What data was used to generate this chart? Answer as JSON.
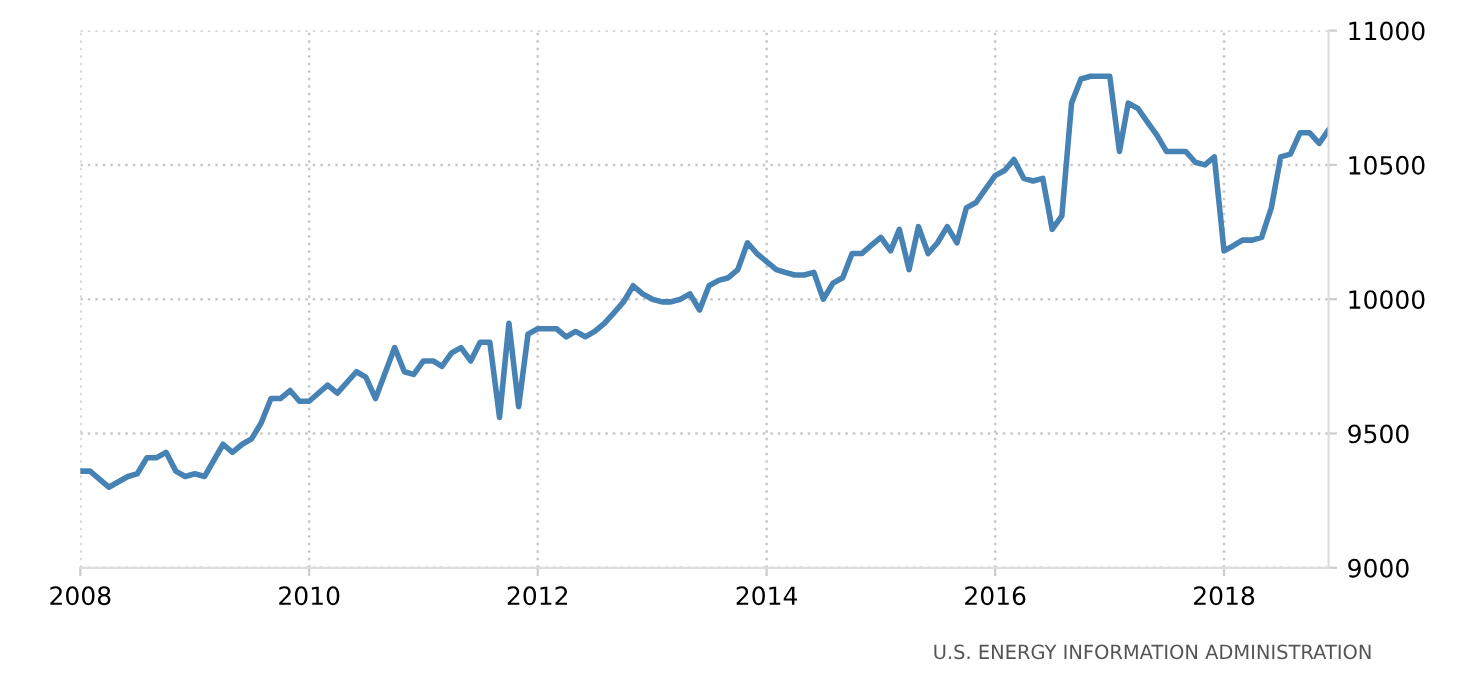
{
  "chart_data": {
    "type": "line",
    "x": [
      "2008-01",
      "2008-02",
      "2008-04",
      "2008-06",
      "2008-07",
      "2008-08",
      "2008-09",
      "2008-10",
      "2008-11",
      "2008-12",
      "2009-01",
      "2009-02",
      "2009-04",
      "2009-05",
      "2009-06",
      "2009-07",
      "2009-08",
      "2009-09",
      "2009-10",
      "2009-11",
      "2009-12",
      "2010-01",
      "2010-03",
      "2010-04",
      "2010-06",
      "2010-07",
      "2010-08",
      "2010-10",
      "2010-11",
      "2010-12",
      "2011-01",
      "2011-02",
      "2011-03",
      "2011-04",
      "2011-05",
      "2011-06",
      "2011-07",
      "2011-08",
      "2011-09",
      "2011-10",
      "2011-11",
      "2011-12",
      "2012-01",
      "2012-02",
      "2012-03",
      "2012-04",
      "2012-05",
      "2012-06",
      "2012-07",
      "2012-08",
      "2012-09",
      "2012-10",
      "2012-11",
      "2012-12",
      "2013-01",
      "2013-02",
      "2013-03",
      "2013-04",
      "2013-05",
      "2013-06",
      "2013-07",
      "2013-08",
      "2013-09",
      "2013-10",
      "2013-11",
      "2013-12",
      "2014-01",
      "2014-02",
      "2014-03",
      "2014-04",
      "2014-05",
      "2014-06",
      "2014-07",
      "2014-08",
      "2014-09",
      "2014-10",
      "2014-11",
      "2014-12",
      "2015-01",
      "2015-02",
      "2015-03",
      "2015-04",
      "2015-05",
      "2015-06",
      "2015-07",
      "2015-08",
      "2015-09",
      "2015-10",
      "2015-11",
      "2015-12",
      "2016-01",
      "2016-02",
      "2016-03",
      "2016-04",
      "2016-05",
      "2016-06",
      "2016-07",
      "2016-08",
      "2016-09",
      "2016-10",
      "2016-11",
      "2016-12",
      "2017-01",
      "2017-02",
      "2017-03",
      "2017-04",
      "2017-05",
      "2017-06",
      "2017-07",
      "2017-08",
      "2017-09",
      "2017-10",
      "2017-11",
      "2017-12",
      "2018-01",
      "2018-02",
      "2018-03",
      "2018-04",
      "2018-05",
      "2018-06",
      "2018-07",
      "2018-08",
      "2018-09",
      "2018-10",
      "2018-11",
      "2018-12"
    ],
    "series": [
      {
        "color": "#4682b4",
        "values": [
          9360,
          9360,
          9300,
          9340,
          9350,
          9410,
          9410,
          9430,
          9360,
          9340,
          9350,
          9340,
          9460,
          9430,
          9460,
          9480,
          9540,
          9630,
          9630,
          9660,
          9620,
          9620,
          9680,
          9650,
          9730,
          9710,
          9630,
          9820,
          9730,
          9720,
          9770,
          9770,
          9750,
          9800,
          9820,
          9770,
          9840,
          9840,
          9560,
          9910,
          9600,
          9870,
          9890,
          9890,
          9890,
          9860,
          9880,
          9860,
          9880,
          9910,
          9950,
          9990,
          10050,
          10020,
          10000,
          9990,
          9990,
          10000,
          10020,
          9960,
          10050,
          10070,
          10080,
          10110,
          10210,
          10170,
          10140,
          10110,
          10100,
          10090,
          10090,
          10100,
          10000,
          10060,
          10080,
          10170,
          10170,
          10200,
          10230,
          10180,
          10260,
          10110,
          10270,
          10170,
          10210,
          10270,
          10210,
          10340,
          10360,
          10410,
          10460,
          10480,
          10520,
          10450,
          10440,
          10450,
          10260,
          10310,
          10730,
          10820,
          10830,
          10830,
          10830,
          10550,
          10730,
          10710,
          10660,
          10610,
          10550,
          10550,
          10550,
          10510,
          10500,
          10530,
          10180,
          10200,
          10220,
          10220,
          10230,
          10340,
          10530,
          10540,
          10620,
          10620,
          10580,
          10630
        ]
      }
    ],
    "xlim": [
      "2008-01",
      "2018-12"
    ],
    "xticks": [
      "2008",
      "2010",
      "2012",
      "2014",
      "2016",
      "2018"
    ],
    "ylim": [
      9000,
      11000
    ],
    "yticks": [
      9000,
      9500,
      10000,
      10500,
      11000
    ],
    "grid": true,
    "annotations": [
      "U.S. ENERGY INFORMATION ADMINISTRATION"
    ]
  }
}
